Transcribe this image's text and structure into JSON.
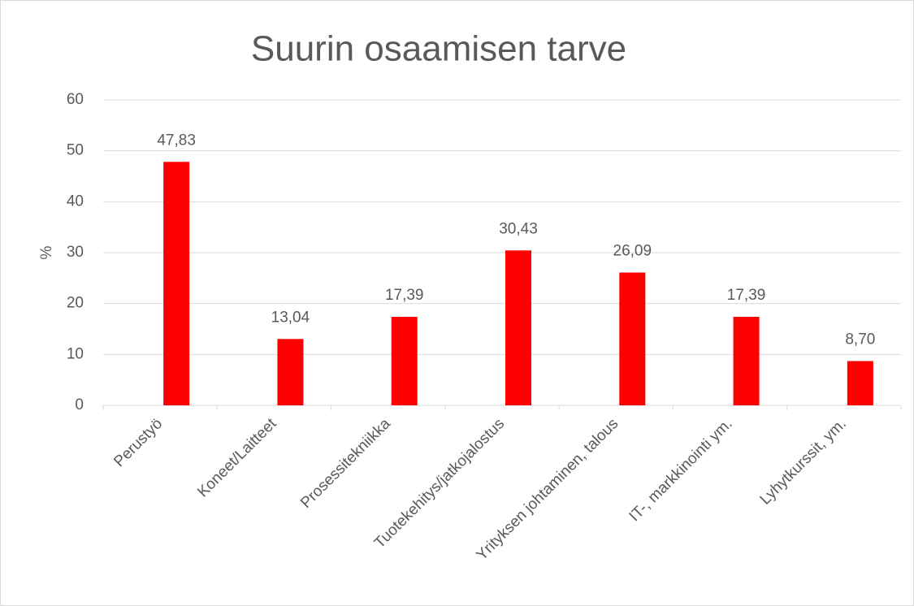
{
  "chart_data": {
    "type": "bar",
    "title": "Suurin osaamisen tarve",
    "y_label": "%",
    "categories": [
      "Perustyö",
      "Koneet/Laitteet",
      "Prosessitekniikka",
      "Tuotekehitys/jatkojalostus",
      "Yrityksen johtaminen, talous",
      "IT-, markkinointi ym.",
      "Lyhytkurssit, ym."
    ],
    "values": [
      47.83,
      13.04,
      17.39,
      30.43,
      26.09,
      17.39,
      8.7
    ],
    "value_labels": [
      "47,83",
      "13,04",
      "17,39",
      "30,43",
      "26,09",
      "17,39",
      "8,70"
    ],
    "color": "#ff0000",
    "ylim": [
      0,
      60
    ],
    "yticks": [
      0,
      10,
      20,
      30,
      40,
      50,
      60
    ],
    "grid": true
  }
}
